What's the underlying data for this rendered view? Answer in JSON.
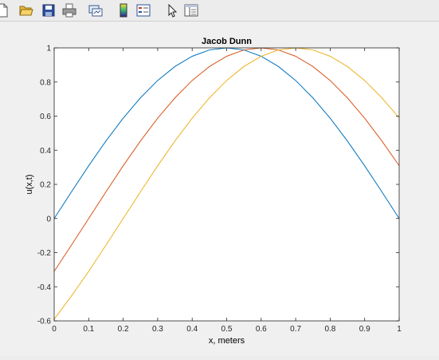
{
  "toolbar": {
    "icons": [
      "new-figure-icon",
      "open-file-icon",
      "save-icon",
      "print-icon",
      "link-plot-icon",
      "insert-colorbar-icon",
      "insert-legend-icon",
      "edit-plot-pointer-icon",
      "property-inspector-icon"
    ]
  },
  "colors": {
    "series1": "#0072BD",
    "series2": "#D95319",
    "series3": "#EDB120"
  },
  "chart_data": {
    "type": "line",
    "title": "Jacob Dunn",
    "xlabel": "x, meters",
    "ylabel": "u(x,t)",
    "xlim": [
      0,
      1
    ],
    "ylim": [
      -0.6,
      1
    ],
    "grid": false,
    "xticks": [
      0,
      0.1,
      0.2,
      0.3,
      0.4,
      0.5,
      0.6,
      0.7,
      0.8,
      0.9,
      1
    ],
    "xtick_labels": [
      "0",
      "0.1",
      "0.2",
      "0.3",
      "0.4",
      "0.5",
      "0.6",
      "0.7",
      "0.8",
      "0.9",
      "1"
    ],
    "yticks": [
      -0.6,
      -0.4,
      -0.2,
      0,
      0.2,
      0.4,
      0.6,
      0.8,
      1
    ],
    "ytick_labels": [
      "-0.6",
      "-0.4",
      "-0.2",
      "0",
      "0.2",
      "0.4",
      "0.6",
      "0.8",
      "1"
    ],
    "x": [
      0,
      0.05,
      0.1,
      0.15,
      0.2,
      0.25,
      0.3,
      0.35,
      0.4,
      0.45,
      0.5,
      0.55,
      0.6,
      0.65,
      0.7,
      0.75,
      0.8,
      0.85,
      0.9,
      0.95,
      1
    ],
    "series": [
      {
        "color": "#0072BD",
        "values": [
          0,
          0.156,
          0.309,
          0.454,
          0.588,
          0.707,
          0.809,
          0.891,
          0.951,
          0.988,
          1,
          0.988,
          0.951,
          0.891,
          0.809,
          0.707,
          0.588,
          0.454,
          0.309,
          0.156,
          0
        ]
      },
      {
        "color": "#D95319",
        "values": [
          -0.31,
          -0.156,
          0,
          0.156,
          0.309,
          0.454,
          0.588,
          0.707,
          0.809,
          0.891,
          0.951,
          0.988,
          1,
          0.988,
          0.951,
          0.891,
          0.809,
          0.707,
          0.588,
          0.454,
          0.31
        ]
      },
      {
        "color": "#EDB120",
        "values": [
          -0.59,
          -0.454,
          -0.31,
          -0.156,
          0,
          0.156,
          0.309,
          0.454,
          0.588,
          0.707,
          0.809,
          0.891,
          0.951,
          0.988,
          1,
          0.988,
          0.951,
          0.891,
          0.809,
          0.707,
          0.59
        ]
      }
    ]
  }
}
